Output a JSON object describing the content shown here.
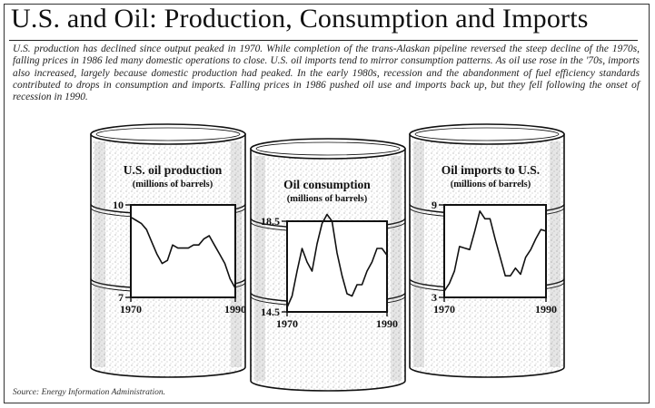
{
  "header": {
    "title": "U.S. and Oil: Production, Consumption and Imports",
    "description": "U.S. production has declined since output peaked in 1970. While completion of the trans-Alaskan pipeline reversed the steep decline of the 1970s, falling prices in 1986 led many domestic operations to close. U.S. oil imports tend to mirror consumption patterns. As oil use rose in the '70s, imports also increased, largely because domestic production had peaked. In the early 1980s, recession and the abandonment of fuel efficiency standards contributed to drops in consumption and imports. Falling prices in 1986 pushed oil use and imports back up, but they fell following the onset of recession in 1990."
  },
  "footer": {
    "source": "Source: Energy Information Administration."
  },
  "colors": {
    "ink": "#111111",
    "barrel": "#ffffff",
    "texture": "#6a6a6a",
    "paper": "#ffffff"
  },
  "chart_data": [
    {
      "type": "line",
      "title": "U.S. oil production",
      "subtitle": "(millions of barrels)",
      "xlabels": [
        "1970",
        "1990"
      ],
      "ylabels": [
        "10",
        "7"
      ],
      "xlim": [
        1970,
        1990
      ],
      "ylim": [
        7,
        10
      ],
      "x": [
        1970,
        1971,
        1972,
        1973,
        1974,
        1975,
        1976,
        1977,
        1978,
        1979,
        1980,
        1981,
        1982,
        1983,
        1984,
        1985,
        1986,
        1987,
        1988,
        1989,
        1990
      ],
      "series": [
        {
          "values": [
            9.6,
            9.5,
            9.4,
            9.2,
            8.8,
            8.4,
            8.1,
            8.2,
            8.7,
            8.6,
            8.6,
            8.6,
            8.7,
            8.7,
            8.9,
            9.0,
            8.7,
            8.4,
            8.1,
            7.6,
            7.3
          ]
        }
      ]
    },
    {
      "type": "line",
      "title": "Oil consumption",
      "subtitle": "(millions of barrels)",
      "xlabels": [
        "1970",
        "1990"
      ],
      "ylabels": [
        "18.5",
        "14.5"
      ],
      "xlim": [
        1970,
        1990
      ],
      "ylim": [
        14.5,
        18.5
      ],
      "x": [
        1970,
        1971,
        1972,
        1973,
        1974,
        1975,
        1976,
        1977,
        1978,
        1979,
        1980,
        1981,
        1982,
        1983,
        1984,
        1985,
        1986,
        1987,
        1988,
        1989,
        1990
      ],
      "series": [
        {
          "values": [
            14.7,
            15.2,
            16.3,
            17.3,
            16.7,
            16.3,
            17.5,
            18.4,
            18.8,
            18.5,
            17.1,
            16.1,
            15.3,
            15.2,
            15.7,
            15.7,
            16.3,
            16.7,
            17.3,
            17.3,
            17.0
          ]
        }
      ]
    },
    {
      "type": "line",
      "title": "Oil imports to U.S.",
      "subtitle": "(millions of barrels)",
      "xlabels": [
        "1970",
        "1990"
      ],
      "ylabels": [
        "9",
        "3"
      ],
      "xlim": [
        1970,
        1990
      ],
      "ylim": [
        3,
        9
      ],
      "x": [
        1970,
        1971,
        1972,
        1973,
        1974,
        1975,
        1976,
        1977,
        1978,
        1979,
        1980,
        1981,
        1982,
        1983,
        1984,
        1985,
        1986,
        1987,
        1988,
        1989,
        1990
      ],
      "series": [
        {
          "values": [
            3.4,
            3.9,
            4.7,
            6.3,
            6.2,
            6.1,
            7.3,
            8.6,
            8.1,
            8.1,
            6.8,
            5.6,
            4.4,
            4.4,
            4.9,
            4.5,
            5.6,
            6.1,
            6.8,
            7.4,
            7.3
          ]
        }
      ]
    }
  ]
}
